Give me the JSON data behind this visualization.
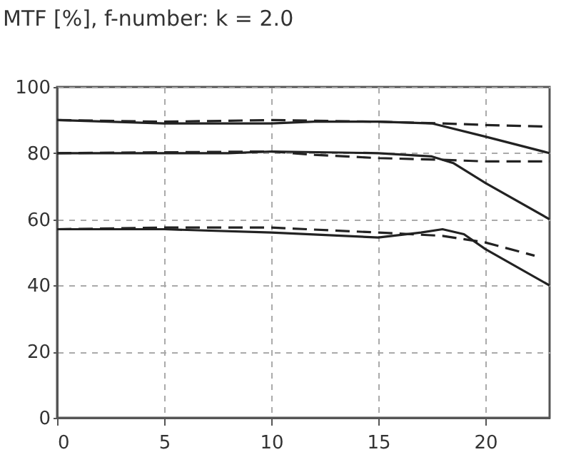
{
  "chart_data": {
    "type": "line",
    "title": "MTF [%], f-number: k = 2.0",
    "xlim": [
      0,
      23
    ],
    "xticks": [
      0,
      5,
      10,
      15,
      20
    ],
    "ylim": [
      0,
      100
    ],
    "yticks": [
      0,
      20,
      40,
      60,
      80,
      100
    ],
    "grid": true,
    "marker": "none",
    "series": [
      {
        "color": "#222222",
        "line_style": "solid",
        "x": [
          0,
          5,
          10,
          12,
          15,
          17.5,
          20,
          23
        ],
        "values": [
          90,
          89,
          89,
          89.5,
          89.5,
          89,
          85,
          80
        ]
      },
      {
        "color": "#222222",
        "line_style": "dashed",
        "x": [
          0,
          5,
          10,
          15,
          18,
          20,
          23
        ],
        "values": [
          90,
          89.5,
          90,
          89.5,
          89,
          88.5,
          88
        ]
      },
      {
        "color": "#222222",
        "line_style": "solid",
        "x": [
          0,
          5,
          8,
          10,
          15,
          17.5,
          18.5,
          20,
          23
        ],
        "values": [
          80,
          80,
          80,
          80.5,
          80,
          79,
          77,
          71,
          60
        ]
      },
      {
        "color": "#222222",
        "line_style": "dashed",
        "x": [
          0,
          10,
          12,
          15,
          18,
          20,
          23
        ],
        "values": [
          80,
          80.5,
          79.5,
          78.5,
          78,
          77.5,
          77.5
        ]
      },
      {
        "color": "#222222",
        "line_style": "solid",
        "x": [
          0,
          5,
          10,
          15,
          17,
          18,
          19,
          20,
          23
        ],
        "values": [
          57,
          57,
          56,
          54.5,
          56,
          57,
          55.5,
          51,
          40
        ]
      },
      {
        "color": "#222222",
        "line_style": "dashed",
        "x": [
          0,
          5,
          10,
          15,
          18,
          20,
          22.3
        ],
        "values": [
          57,
          57.5,
          57.5,
          56,
          55,
          53,
          49
        ]
      }
    ]
  }
}
